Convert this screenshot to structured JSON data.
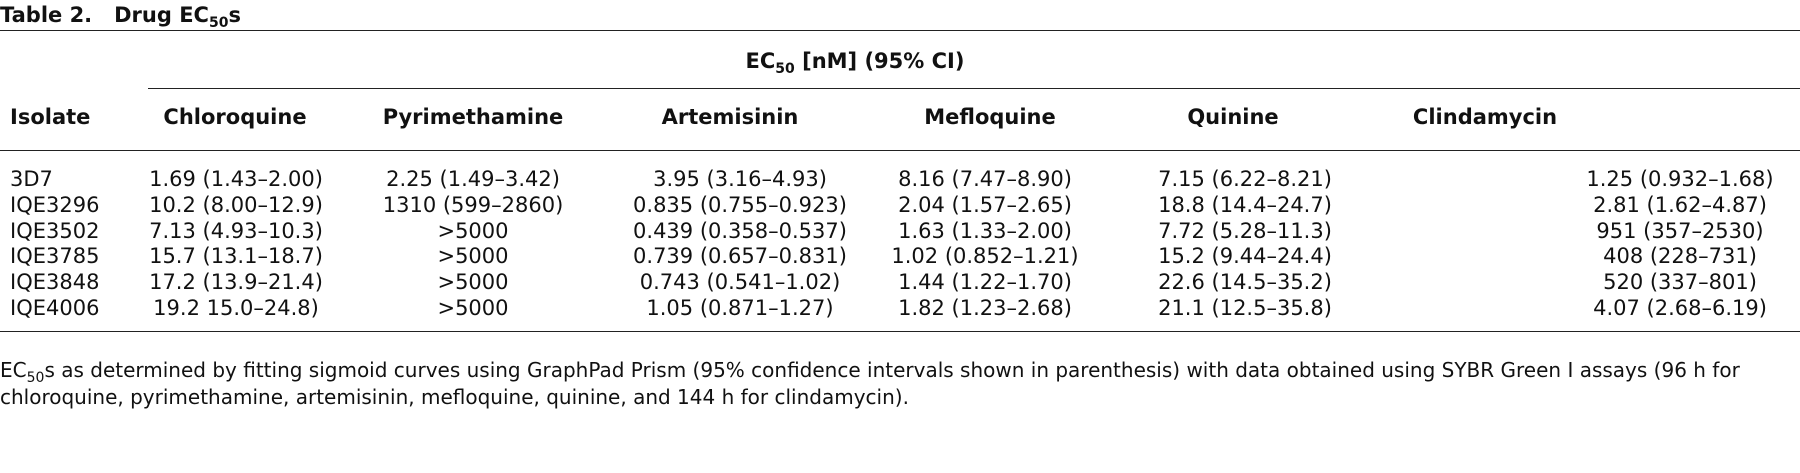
{
  "caption": {
    "label": "Table 2.",
    "title": [
      "Drug EC",
      "50",
      "s"
    ]
  },
  "table": {
    "group_header": [
      "EC",
      "50",
      " [nM] (95% CI)"
    ],
    "columns": [
      "Isolate",
      "Chloroquine",
      "Pyrimethamine",
      "Artemisinin",
      "Mefloquine",
      "Quinine",
      "Clindamycin"
    ],
    "rows": [
      [
        "3D7",
        "1.69 (1.43–2.00)",
        "2.25 (1.49–3.42)",
        "3.95 (3.16–4.93)",
        "8.16 (7.47–8.90)",
        "7.15 (6.22–8.21)",
        "1.25 (0.932–1.68)"
      ],
      [
        "IQE3296",
        "10.2 (8.00–12.9)",
        "1310 (599–2860)",
        "0.835 (0.755–0.923)",
        "2.04 (1.57–2.65)",
        "18.8 (14.4–24.7)",
        "2.81 (1.62–4.87)"
      ],
      [
        "IQE3502",
        "7.13 (4.93–10.3)",
        ">5000",
        "0.439 (0.358–0.537)",
        "1.63 (1.33–2.00)",
        "7.72 (5.28–11.3)",
        "951 (357–2530)"
      ],
      [
        "IQE3785",
        "15.7 (13.1–18.7)",
        ">5000",
        "0.739 (0.657–0.831)",
        "1.02 (0.852–1.21)",
        "15.2 (9.44–24.4)",
        "408 (228–731)"
      ],
      [
        "IQE3848",
        "17.2 (13.9–21.4)",
        ">5000",
        "0.743 (0.541–1.02)",
        "1.44 (1.22–1.70)",
        "22.6 (14.5–35.2)",
        "520 (337–801)"
      ],
      [
        "IQE4006",
        "19.2 15.0–24.8)",
        ">5000",
        "1.05 (0.871–1.27)",
        "1.82 (1.23–2.68)",
        "21.1 (12.5–35.8)",
        "4.07 (2.68–6.19)"
      ]
    ]
  },
  "footnote": [
    "EC",
    "50",
    "s as determined by fitting sigmoid curves using GraphPad Prism (95% confidence intervals shown in parenthesis) with data obtained using SYBR Green I assays (96 h for chloroquine, pyrimethamine, artemisinin, mefloquine, quinine, and 144 h for clindamycin)."
  ]
}
